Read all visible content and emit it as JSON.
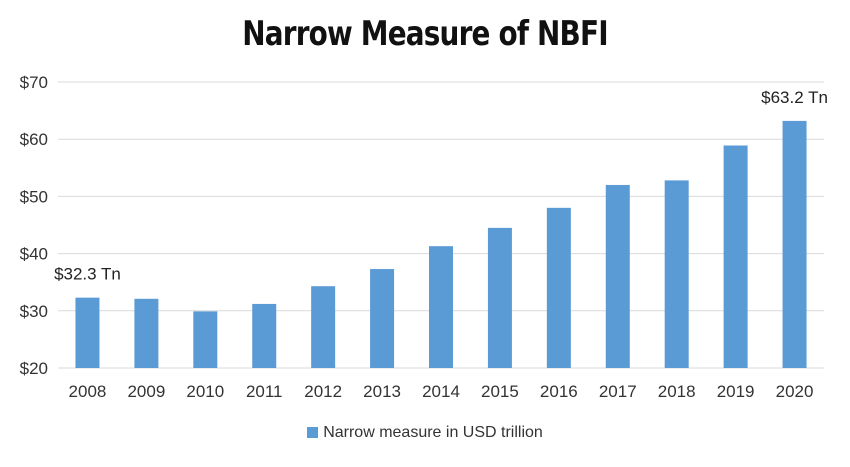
{
  "chart_data": {
    "type": "bar",
    "title": "Narrow Measure of NBFI",
    "xlabel": "",
    "ylabel": "",
    "categories": [
      "2008",
      "2009",
      "2010",
      "2011",
      "2012",
      "2013",
      "2014",
      "2015",
      "2016",
      "2017",
      "2018",
      "2019",
      "2020"
    ],
    "series": [
      {
        "name": "Narrow measure in USD trillion",
        "values": [
          32.3,
          32.1,
          29.9,
          31.2,
          34.3,
          37.3,
          41.3,
          44.5,
          48.0,
          52.0,
          52.8,
          58.9,
          63.2
        ]
      }
    ],
    "ylim": [
      20,
      70
    ],
    "yticks": [
      {
        "value": 20,
        "label": "$20"
      },
      {
        "value": 30,
        "label": "$30"
      },
      {
        "value": 40,
        "label": "$40"
      },
      {
        "value": 50,
        "label": "$50"
      },
      {
        "value": 60,
        "label": "$60"
      },
      {
        "value": 70,
        "label": "$70"
      }
    ],
    "annotations": [
      {
        "category": "2008",
        "text": "$32.3 Tn"
      },
      {
        "category": "2020",
        "text": "$63.2 Tn"
      }
    ],
    "grid": true,
    "legend_position": "bottom",
    "bar_color": "#5b9bd5",
    "grid_color": "#d9d9d9"
  }
}
